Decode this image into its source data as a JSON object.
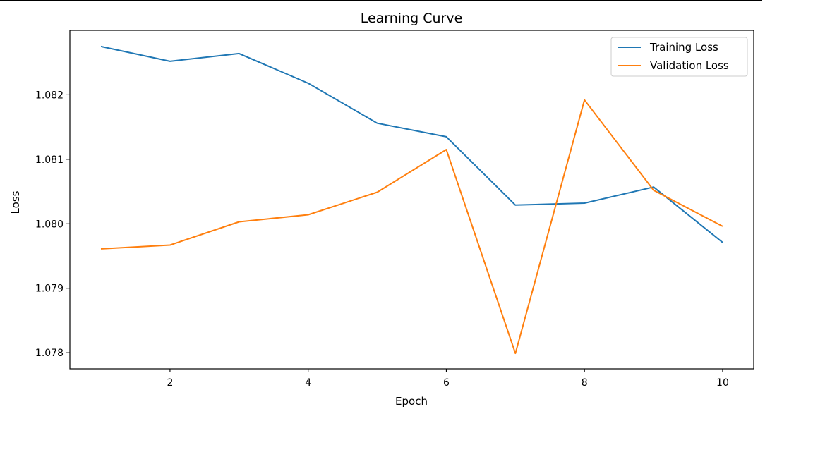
{
  "chart_data": {
    "type": "line",
    "title": "Learning Curve",
    "xlabel": "Epoch",
    "ylabel": "Loss",
    "x": [
      1,
      2,
      3,
      4,
      5,
      6,
      7,
      8,
      9,
      10
    ],
    "xlim": [
      0.55,
      10.45
    ],
    "ylim": [
      1.07775,
      1.083
    ],
    "xticks": [
      2,
      4,
      6,
      8,
      10
    ],
    "xtick_labels": [
      "2",
      "4",
      "6",
      "8",
      "10"
    ],
    "yticks": [
      1.078,
      1.079,
      1.08,
      1.081,
      1.082
    ],
    "ytick_labels": [
      "1.078",
      "1.079",
      "1.080",
      "1.081",
      "1.082"
    ],
    "grid": false,
    "legend_position": "top-right",
    "series": [
      {
        "name": "Training Loss",
        "color": "#1f77b4",
        "values": [
          1.08275,
          1.08252,
          1.08264,
          1.08218,
          1.08156,
          1.08135,
          1.08029,
          1.08032,
          1.08057,
          1.07971
        ]
      },
      {
        "name": "Validation Loss",
        "color": "#ff7f0e",
        "values": [
          1.07961,
          1.07967,
          1.08003,
          1.08014,
          1.08049,
          1.08115,
          1.07799,
          1.08192,
          1.08052,
          1.07996
        ]
      }
    ]
  }
}
